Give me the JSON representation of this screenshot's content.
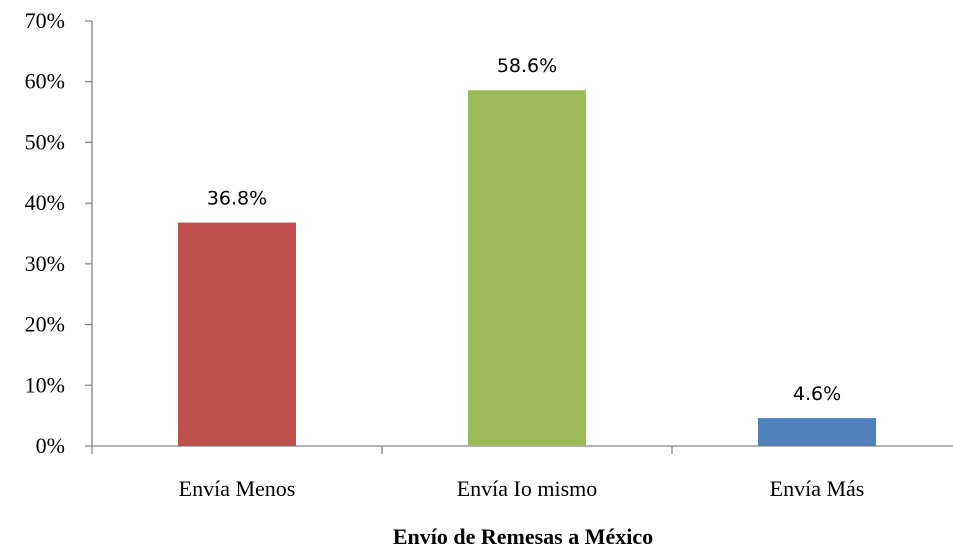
{
  "chart_data": {
    "type": "bar",
    "title": "",
    "xlabel": "Envío de Remesas a México",
    "ylabel": "",
    "categories": [
      "Envía Menos",
      "Envía Io mismo",
      "Envía Más"
    ],
    "values": [
      36.8,
      58.6,
      4.6
    ],
    "data_labels": [
      "36.8%",
      "58.6%",
      "4.6%"
    ],
    "colors": [
      "#C0504D",
      "#9BBB59",
      "#4F81BD"
    ],
    "ylim": [
      0,
      70
    ],
    "y_ticks": [
      0,
      10,
      20,
      30,
      40,
      50,
      60,
      70
    ],
    "y_tick_labels": [
      "0%",
      "10%",
      "20%",
      "30%",
      "40%",
      "50%",
      "60%",
      "70%"
    ],
    "grid": false,
    "legend": "none"
  }
}
